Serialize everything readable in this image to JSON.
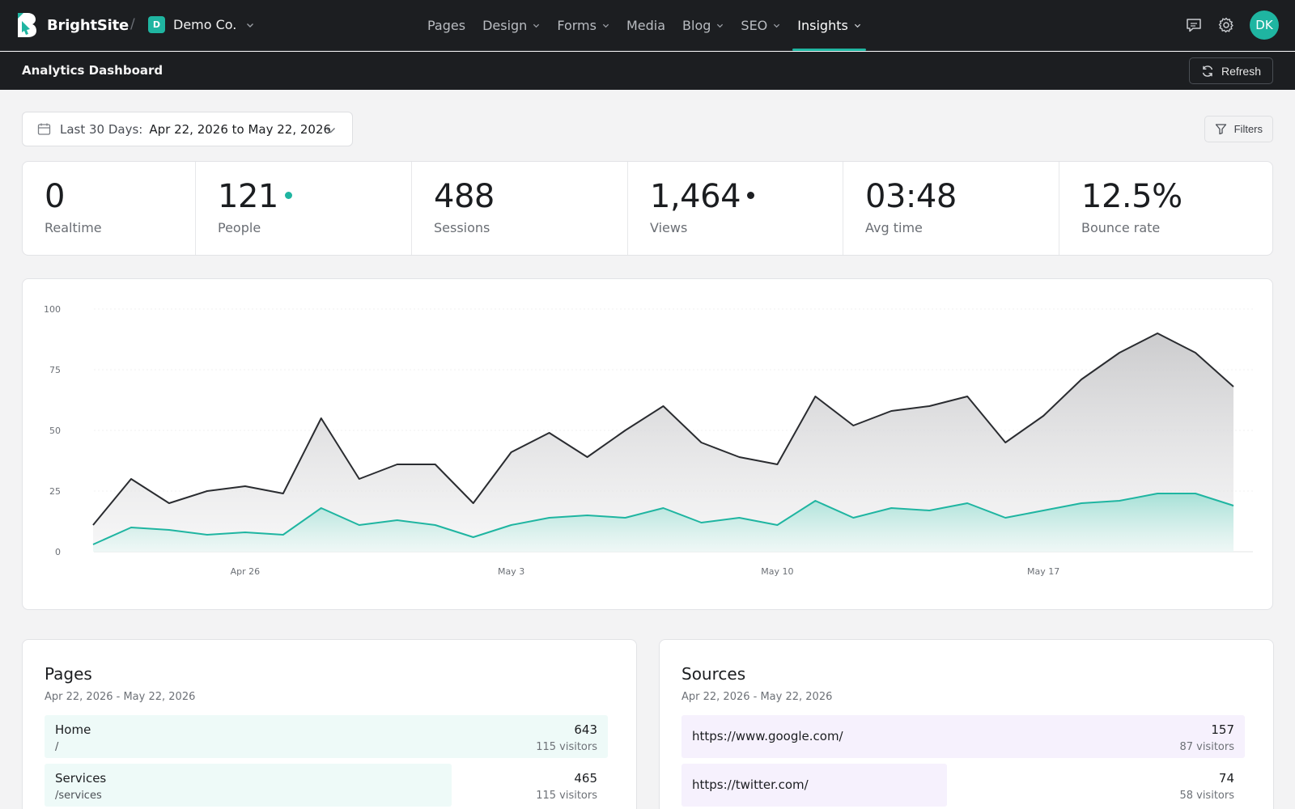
{
  "app": {
    "name": "BrightSite",
    "separator": "/"
  },
  "org": {
    "badge": "D",
    "name": "Demo Co."
  },
  "nav": [
    {
      "label": "Pages",
      "dropdown": false,
      "active": false
    },
    {
      "label": "Design",
      "dropdown": true,
      "active": false
    },
    {
      "label": "Forms",
      "dropdown": true,
      "active": false
    },
    {
      "label": "Media",
      "dropdown": false,
      "active": false
    },
    {
      "label": "Blog",
      "dropdown": true,
      "active": false
    },
    {
      "label": "SEO",
      "dropdown": true,
      "active": false
    },
    {
      "label": "Insights",
      "dropdown": true,
      "active": true
    }
  ],
  "user": {
    "initials": "DK"
  },
  "subheader": {
    "title": "Analytics Dashboard",
    "refresh_label": "Refresh"
  },
  "date_range": {
    "label": "Last 30 Days:",
    "value": "Apr 22, 2026 to May 22, 2026"
  },
  "filters_label": "Filters",
  "stats": [
    {
      "value": "0",
      "label": "Realtime",
      "dot": null
    },
    {
      "value": "121",
      "label": "People",
      "dot": "#1fb5a1"
    },
    {
      "value": "488",
      "label": "Sessions",
      "dot": null
    },
    {
      "value": "1,464",
      "label": "Views",
      "dot": "#1d1f22"
    },
    {
      "value": "03:48",
      "label": "Avg time",
      "dot": null
    },
    {
      "value": "12.5%",
      "label": "Bounce rate",
      "dot": null
    }
  ],
  "colors": {
    "accent": "#1fb5a1",
    "views_line": "#2a2c30",
    "people_line": "#1fb5a1",
    "pages_bar": "#eefaf8",
    "sources_bar": "#f6f1fd"
  },
  "chart_data": {
    "type": "area",
    "x_labels": [
      "Apr 26",
      "May 3",
      "May 10",
      "May 17"
    ],
    "x_label_indices": [
      4,
      11,
      18,
      25
    ],
    "ylim": [
      0,
      100
    ],
    "y_ticks": [
      0,
      25,
      50,
      75,
      100
    ],
    "grid": true,
    "series": [
      {
        "name": "Views",
        "values": [
          11,
          30,
          20,
          25,
          27,
          24,
          55,
          30,
          36,
          36,
          20,
          41,
          49,
          39,
          50,
          60,
          45,
          39,
          36,
          64,
          52,
          58,
          60,
          64,
          45,
          56,
          71,
          82,
          90,
          82,
          68
        ]
      },
      {
        "name": "People",
        "values": [
          3,
          10,
          9,
          7,
          8,
          7,
          18,
          11,
          13,
          11,
          6,
          11,
          14,
          15,
          14,
          18,
          12,
          14,
          11,
          21,
          14,
          18,
          17,
          20,
          14,
          17,
          20,
          21,
          24,
          24,
          19
        ]
      }
    ]
  },
  "pages_panel": {
    "title": "Pages",
    "subtitle": "Apr 22, 2026 - May 22, 2026",
    "rows": [
      {
        "name": "Home",
        "path": "/",
        "value": "643",
        "visitors": "115 visitors",
        "fraction": 1.0
      },
      {
        "name": "Services",
        "path": "/services",
        "value": "465",
        "visitors": "115 visitors",
        "fraction": 0.723
      }
    ]
  },
  "sources_panel": {
    "title": "Sources",
    "subtitle": "Apr 22, 2026 - May 22, 2026",
    "rows": [
      {
        "name": "https://www.google.com/",
        "value": "157",
        "visitors": "87 visitors",
        "fraction": 1.0
      },
      {
        "name": "https://twitter.com/",
        "value": "74",
        "visitors": "58 visitors",
        "fraction": 0.471
      }
    ]
  }
}
